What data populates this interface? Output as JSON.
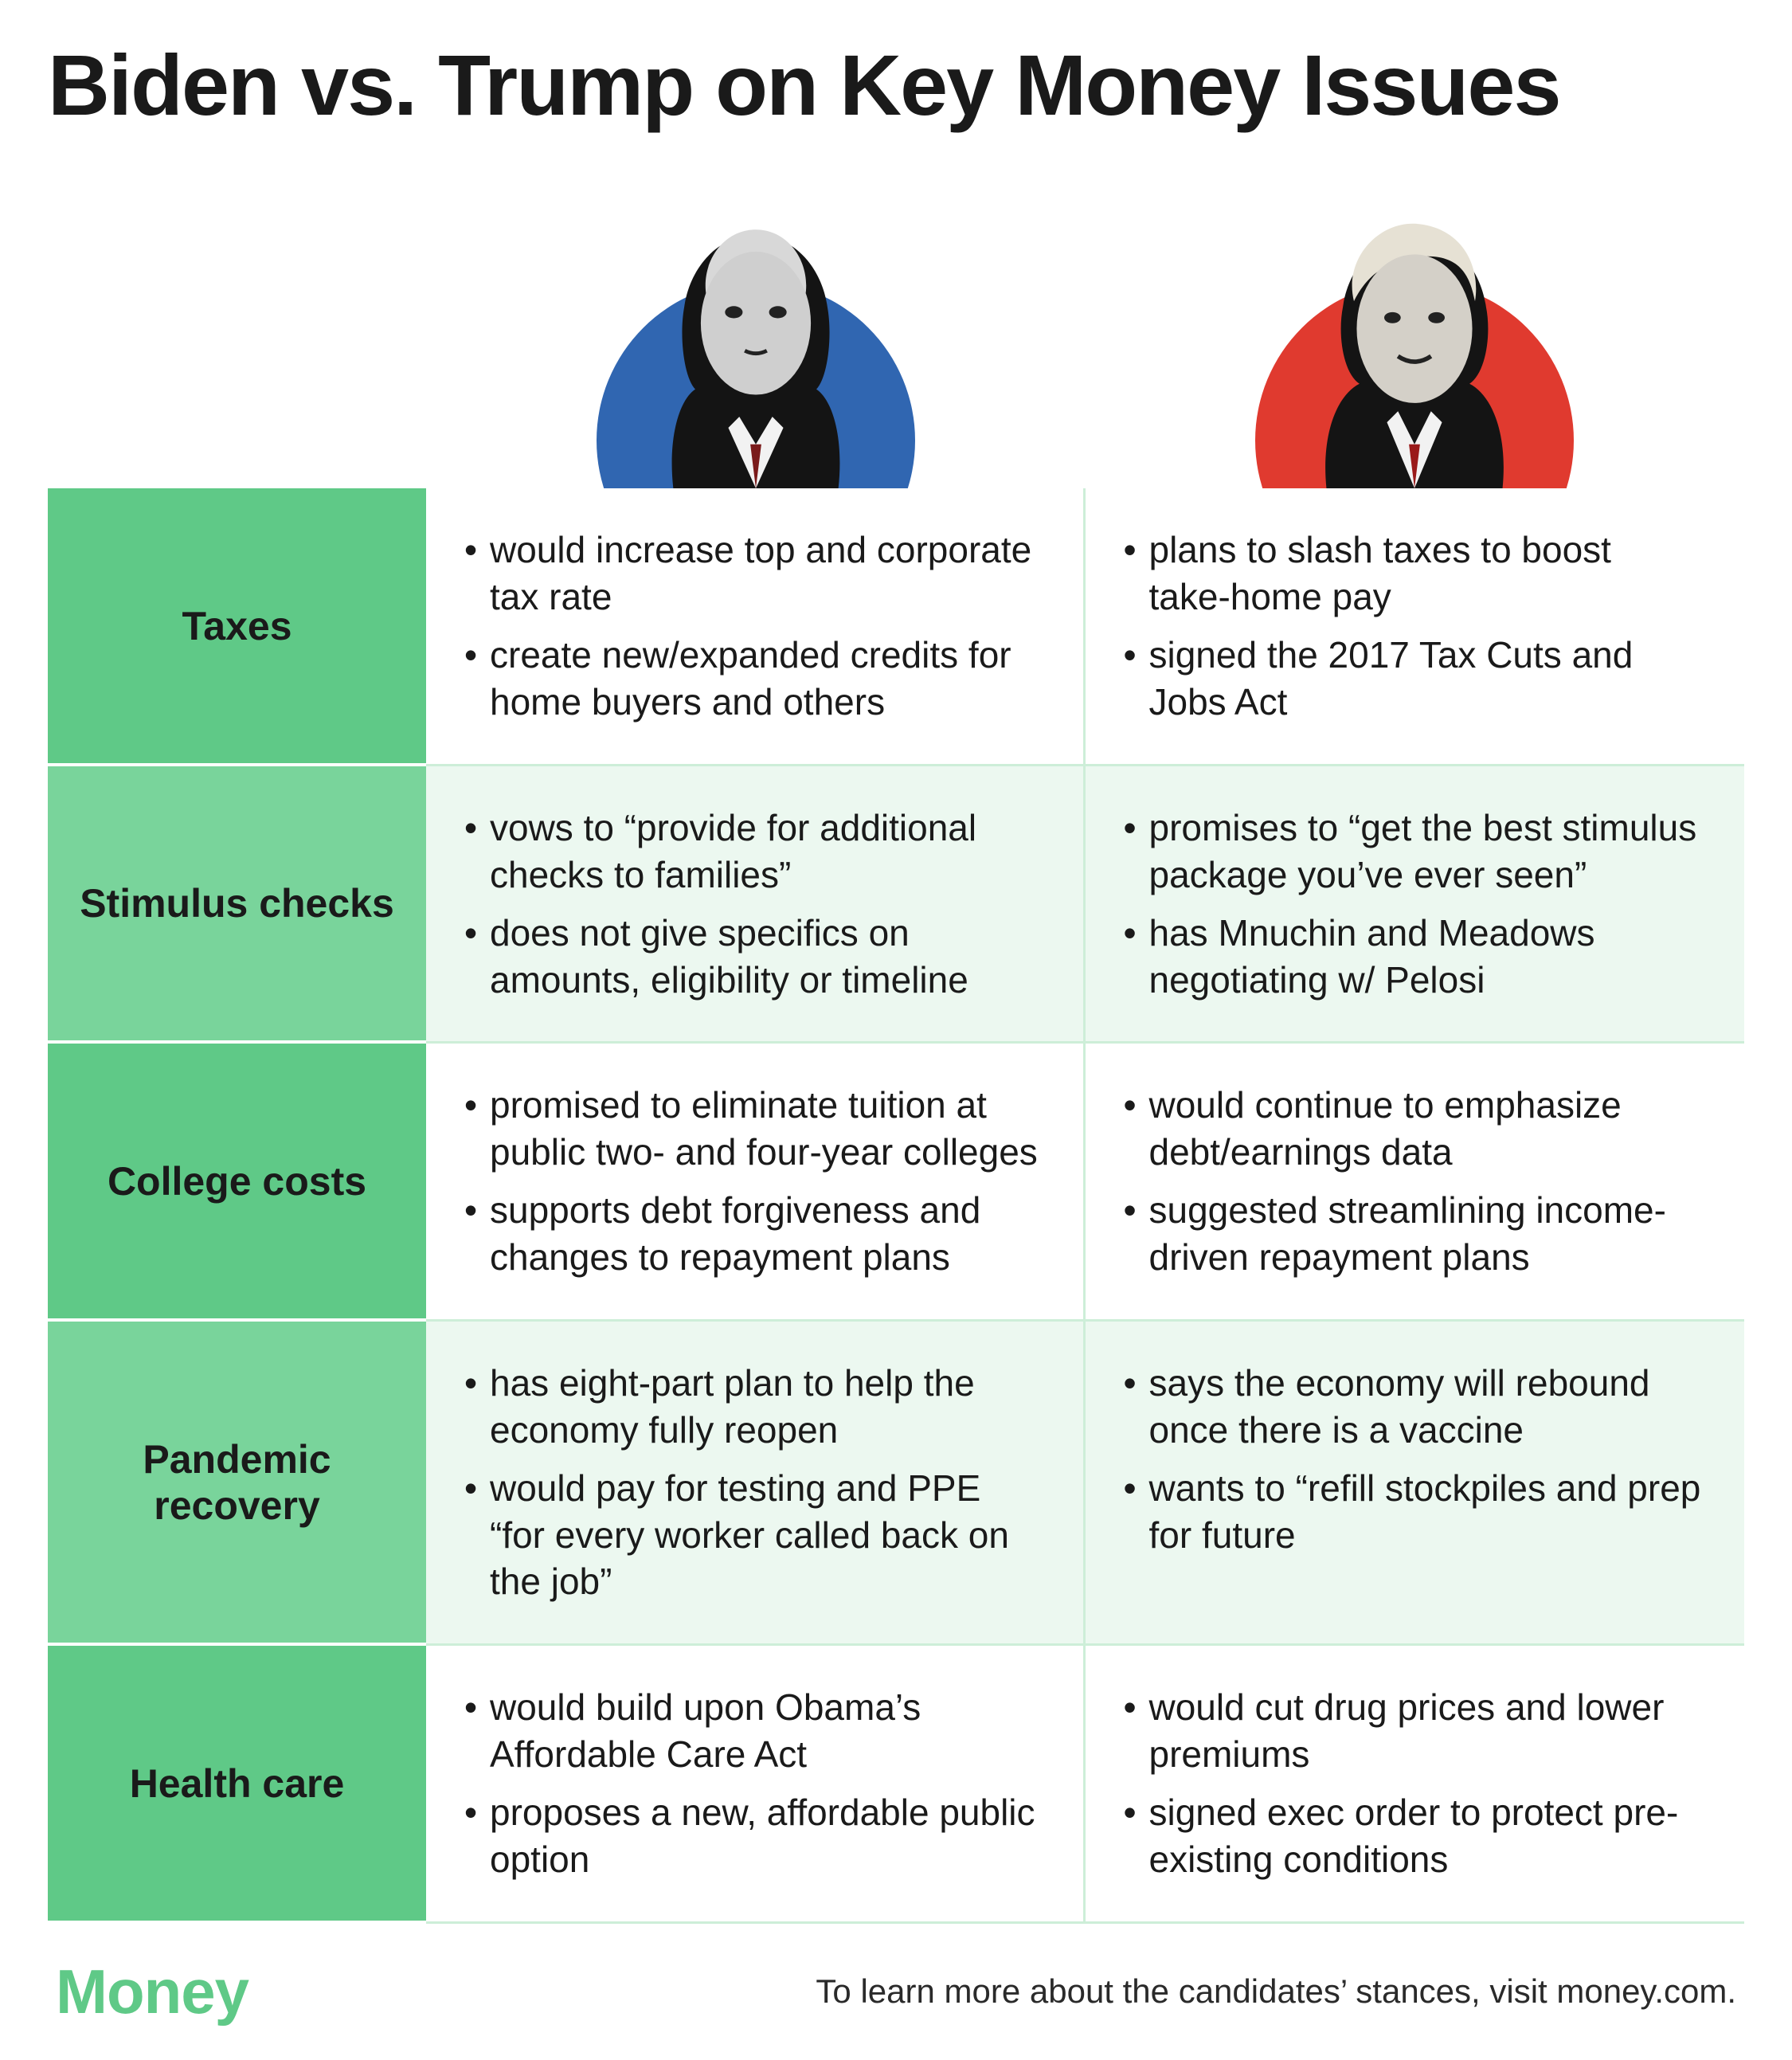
{
  "title": "Biden vs. Trump on Key Money Issues",
  "colors": {
    "biden_circle": "#3066b1",
    "trump_circle": "#e03a2f",
    "label_bg_dark": "#5fc987",
    "label_bg_light": "#79d49b",
    "cell_bg_white": "#ffffff",
    "cell_bg_tint": "#ecf8f0",
    "cell_divider": "#cdeed8",
    "text": "#1a1a1a",
    "logo": "#5fc987"
  },
  "candidates": {
    "left": "Biden",
    "right": "Trump"
  },
  "issues": [
    {
      "label": "Taxes",
      "biden": [
        "would increase top and corporate tax rate",
        "create new/expanded credits for home buyers and others"
      ],
      "trump": [
        "plans to slash taxes to boost take-home pay",
        "signed the 2017 Tax Cuts and Jobs Act"
      ]
    },
    {
      "label": "Stimulus checks",
      "biden": [
        "vows to “provide for additional checks to families”",
        "does not give specifics on amounts, eligibility or timeline"
      ],
      "trump": [
        "promises to “get the best stimulus package you’ve ever seen”",
        "has Mnuchin and Meadows negotiating w/ Pelosi"
      ]
    },
    {
      "label": "College costs",
      "biden": [
        "promised to eliminate tuition at public two- and four-year colleges",
        "supports debt forgiveness and changes to repayment plans"
      ],
      "trump": [
        "would continue to emphasize debt/earnings data",
        "suggested streamlining income-driven repayment plans"
      ]
    },
    {
      "label": "Pandemic recovery",
      "biden": [
        "has eight-part plan to help the economy fully reopen",
        "would pay for testing and PPE “for every worker called back on the job”"
      ],
      "trump": [
        "says the economy will rebound once there is a vaccine",
        "wants to “refill stockpiles and prep for future"
      ]
    },
    {
      "label": "Health care",
      "biden": [
        "would build upon Obama’s Affordable Care Act",
        "proposes a new, affordable public option"
      ],
      "trump": [
        "would cut drug prices and lower premiums",
        "signed exec order to protect pre-existing conditions"
      ]
    }
  ],
  "footer": {
    "logo": "Money",
    "note": "To learn more about the candidates’ stances, visit money.com."
  },
  "typography": {
    "title_fontsize": 108,
    "label_fontsize": 50,
    "body_fontsize": 46,
    "logo_fontsize": 78,
    "footnote_fontsize": 42
  }
}
